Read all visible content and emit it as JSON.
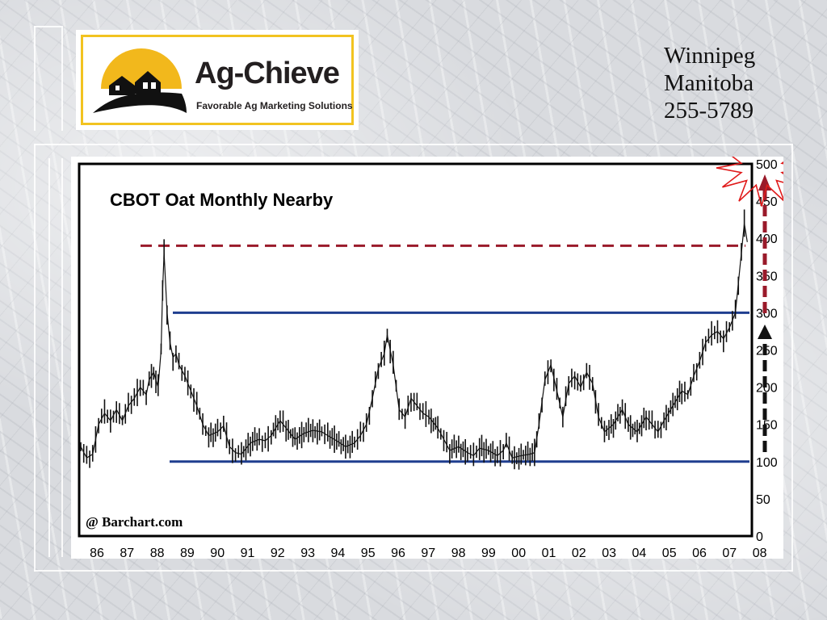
{
  "logo": {
    "brand": "Ag-Chieve",
    "tagline": "Favorable Ag Marketing Solutions"
  },
  "contact": {
    "city": "Winnipeg",
    "province": "Manitoba",
    "phone": "255-5789"
  },
  "chart_data": {
    "type": "line",
    "title": "CBOT Oat Monthly Nearby",
    "source": "@ Barchart.com",
    "xlabel": "",
    "ylabel": "",
    "x_ticks": [
      "86",
      "87",
      "88",
      "89",
      "90",
      "91",
      "92",
      "93",
      "94",
      "95",
      "96",
      "97",
      "98",
      "99",
      "00",
      "01",
      "02",
      "03",
      "04",
      "05",
      "06",
      "07",
      "08"
    ],
    "y_ticks": [
      0,
      50,
      100,
      150,
      200,
      250,
      300,
      350,
      400,
      450,
      500
    ],
    "xlim": [
      1985.7,
      2008.2
    ],
    "ylim": [
      0,
      500
    ],
    "series": [
      {
        "values": [
          [
            1985.7,
            120
          ],
          [
            1985.9,
            105
          ],
          [
            1986.1,
            110
          ],
          [
            1986.3,
            150
          ],
          [
            1986.5,
            165
          ],
          [
            1986.7,
            155
          ],
          [
            1986.9,
            170
          ],
          [
            1987.1,
            155
          ],
          [
            1987.3,
            175
          ],
          [
            1987.5,
            185
          ],
          [
            1987.7,
            200
          ],
          [
            1987.9,
            190
          ],
          [
            1988.0,
            210
          ],
          [
            1988.15,
            220
          ],
          [
            1988.3,
            200
          ],
          [
            1988.4,
            250
          ],
          [
            1988.45,
            330
          ],
          [
            1988.5,
            380
          ],
          [
            1988.6,
            300
          ],
          [
            1988.7,
            260
          ],
          [
            1988.8,
            240
          ],
          [
            1988.9,
            245
          ],
          [
            1989.0,
            230
          ],
          [
            1989.2,
            215
          ],
          [
            1989.4,
            195
          ],
          [
            1989.6,
            175
          ],
          [
            1989.8,
            150
          ],
          [
            1990.0,
            135
          ],
          [
            1990.3,
            140
          ],
          [
            1990.5,
            148
          ],
          [
            1990.7,
            120
          ],
          [
            1990.9,
            112
          ],
          [
            1991.1,
            110
          ],
          [
            1991.4,
            125
          ],
          [
            1991.7,
            130
          ],
          [
            1991.9,
            128
          ],
          [
            1992.1,
            135
          ],
          [
            1992.4,
            155
          ],
          [
            1992.6,
            145
          ],
          [
            1992.9,
            130
          ],
          [
            1993.2,
            138
          ],
          [
            1993.5,
            142
          ],
          [
            1993.8,
            140
          ],
          [
            1994.0,
            135
          ],
          [
            1994.3,
            128
          ],
          [
            1994.6,
            120
          ],
          [
            1994.9,
            125
          ],
          [
            1995.1,
            135
          ],
          [
            1995.3,
            150
          ],
          [
            1995.5,
            185
          ],
          [
            1995.7,
            225
          ],
          [
            1995.9,
            245
          ],
          [
            1996.0,
            270
          ],
          [
            1996.2,
            230
          ],
          [
            1996.4,
            170
          ],
          [
            1996.6,
            160
          ],
          [
            1996.8,
            185
          ],
          [
            1997.0,
            175
          ],
          [
            1997.2,
            165
          ],
          [
            1997.4,
            160
          ],
          [
            1997.7,
            145
          ],
          [
            1997.9,
            130
          ],
          [
            1998.1,
            115
          ],
          [
            1998.4,
            120
          ],
          [
            1998.7,
            112
          ],
          [
            1998.9,
            108
          ],
          [
            1999.1,
            118
          ],
          [
            1999.4,
            115
          ],
          [
            1999.7,
            108
          ],
          [
            1999.9,
            115
          ],
          [
            2000.0,
            125
          ],
          [
            2000.2,
            105
          ],
          [
            2000.5,
            108
          ],
          [
            2000.8,
            110
          ],
          [
            2000.95,
            112
          ],
          [
            2001.1,
            150
          ],
          [
            2001.3,
            210
          ],
          [
            2001.5,
            230
          ],
          [
            2001.7,
            195
          ],
          [
            2001.9,
            160
          ],
          [
            2002.1,
            205
          ],
          [
            2002.3,
            215
          ],
          [
            2002.5,
            200
          ],
          [
            2002.7,
            220
          ],
          [
            2002.9,
            205
          ],
          [
            2003.1,
            160
          ],
          [
            2003.3,
            140
          ],
          [
            2003.6,
            150
          ],
          [
            2003.9,
            170
          ],
          [
            2004.1,
            150
          ],
          [
            2004.4,
            140
          ],
          [
            2004.7,
            160
          ],
          [
            2004.9,
            150
          ],
          [
            2005.1,
            140
          ],
          [
            2005.3,
            155
          ],
          [
            2005.6,
            175
          ],
          [
            2005.9,
            195
          ],
          [
            2006.1,
            190
          ],
          [
            2006.3,
            215
          ],
          [
            2006.5,
            235
          ],
          [
            2006.7,
            260
          ],
          [
            2006.9,
            270
          ],
          [
            2007.1,
            275
          ],
          [
            2007.3,
            265
          ],
          [
            2007.5,
            280
          ],
          [
            2007.7,
            300
          ],
          [
            2007.8,
            340
          ],
          [
            2007.9,
            380
          ],
          [
            2008.0,
            420
          ],
          [
            2008.1,
            395
          ]
        ]
      }
    ],
    "resistance_dashed": 390,
    "lines": [
      300,
      100
    ],
    "colors": {
      "price": "#111111",
      "dashed": "#9a1a2a",
      "levels": "#1f3e8f",
      "arrow_up_red": "#9a1a2a",
      "arrow_up_black": "#111111",
      "star": "#e01a1a"
    }
  }
}
